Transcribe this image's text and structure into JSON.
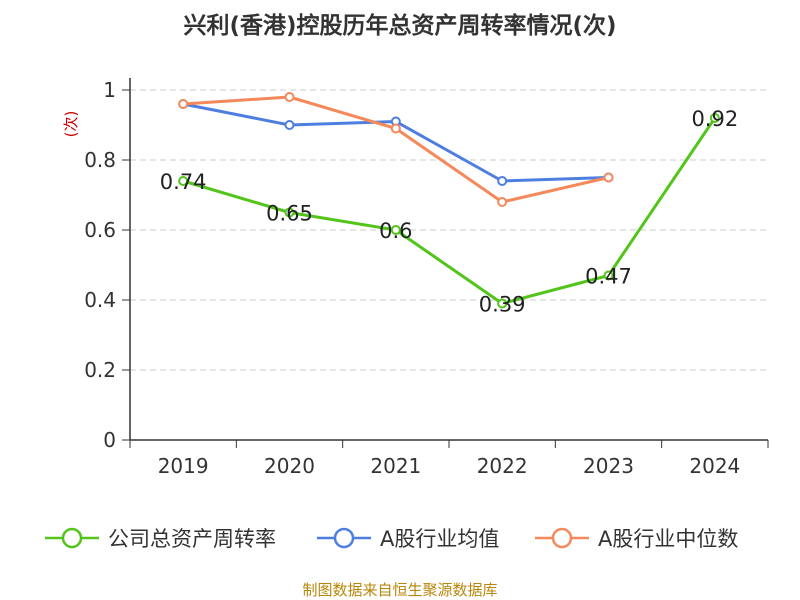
{
  "title": "兴利(香港)控股历年总资产周转率情况(次)",
  "source": "制图数据来自恒生聚源数据库",
  "chart_data": {
    "type": "line",
    "title": "兴利(香港)控股历年总资产周转率情况(次)",
    "ylabel": "(次)",
    "xlabel": "",
    "ylim": [
      0,
      1
    ],
    "yticks": [
      0,
      0.2,
      0.4,
      0.6,
      0.8,
      1
    ],
    "ytick_labels": [
      "0",
      "0.2",
      "0.4",
      "0.6",
      "0.8",
      "1"
    ],
    "categories": [
      "2019",
      "2020",
      "2021",
      "2022",
      "2023",
      "2024"
    ],
    "grid": "horizontal dashed",
    "legend_position": "bottom",
    "series": [
      {
        "name": "公司总资产周转率",
        "color": "#52c41a",
        "values": [
          0.74,
          0.65,
          0.6,
          0.39,
          0.47,
          0.92
        ],
        "data_labels": [
          "0.74",
          "0.65",
          "0.6",
          "0.39",
          "0.47",
          "0.92"
        ]
      },
      {
        "name": "A股行业均值",
        "color": "#4e7fe0",
        "values": [
          0.96,
          0.9,
          0.91,
          0.74,
          0.75,
          null
        ]
      },
      {
        "name": "A股行业中位数",
        "color": "#f5895b",
        "values": [
          0.96,
          0.98,
          0.89,
          0.68,
          0.75,
          null
        ]
      }
    ]
  }
}
